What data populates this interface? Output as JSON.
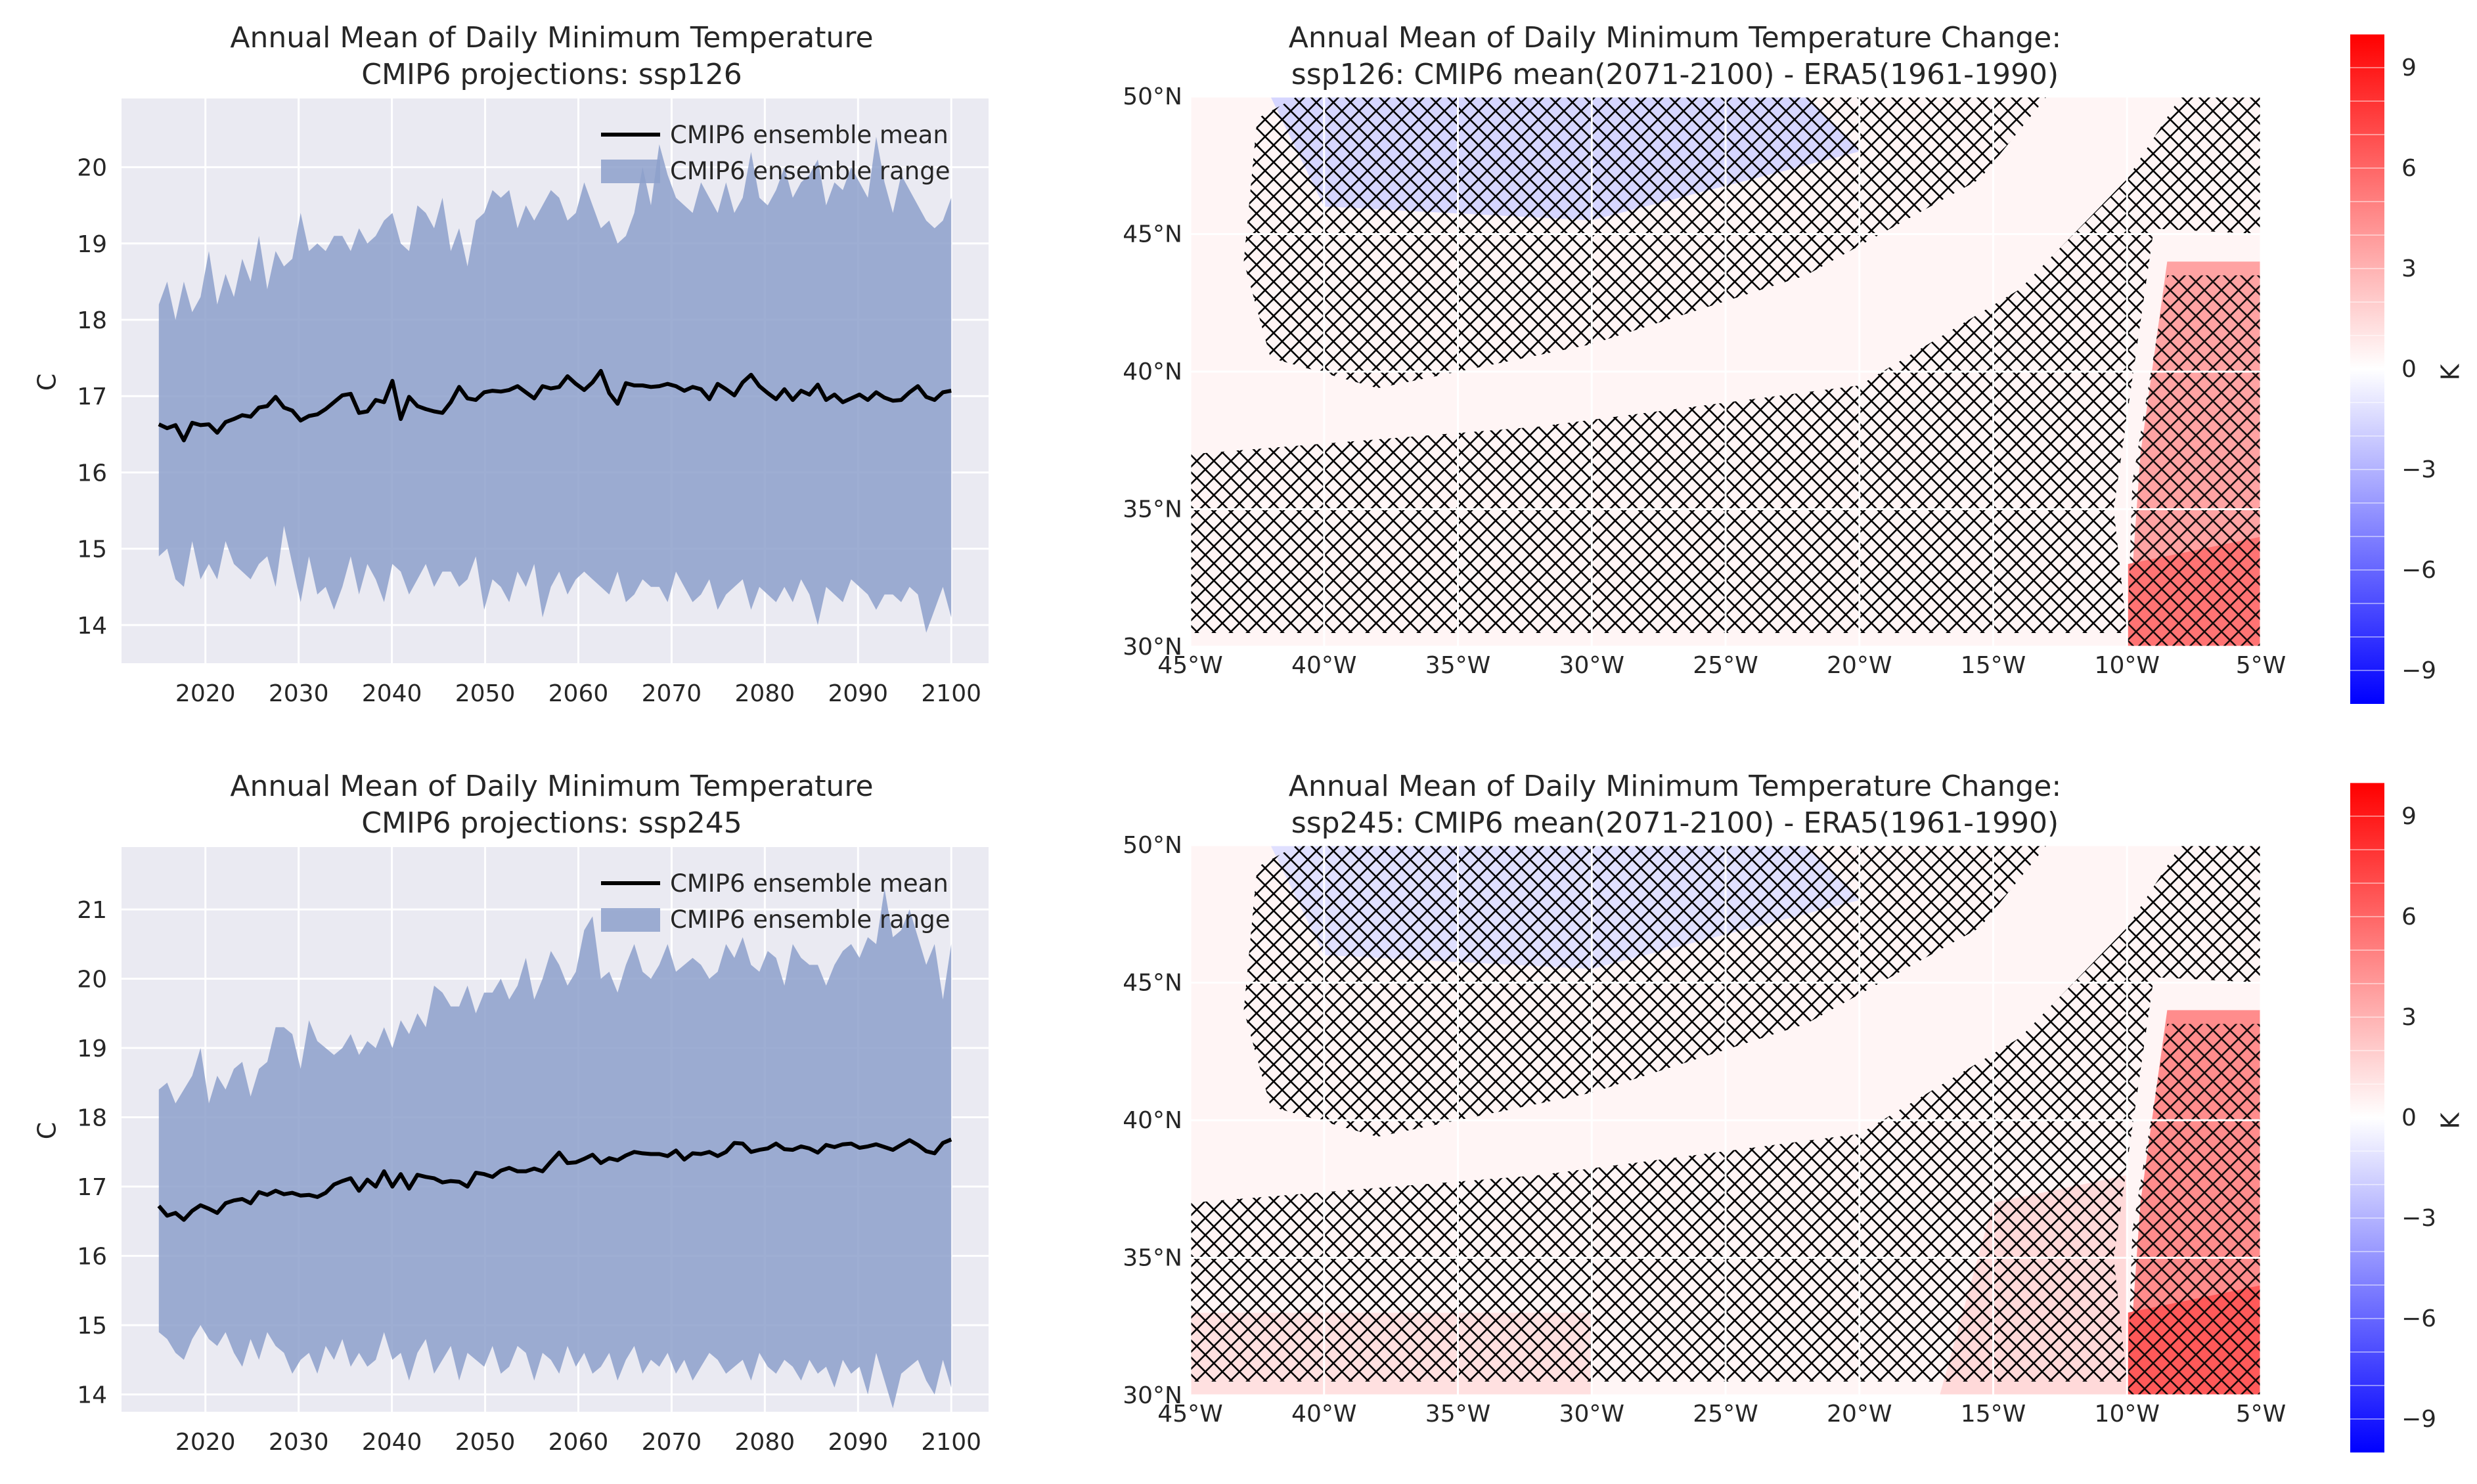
{
  "colors": {
    "axes_bg": "#eaeaf2",
    "grid": "#ffffff",
    "range_fill": "#8da0cb",
    "mean_line": "#000000",
    "hatch": "#000000",
    "cmap_neg": "#0000ff",
    "cmap_zero": "#ffffff",
    "cmap_pos": "#ff0000"
  },
  "chart_data": [
    {
      "type": "area",
      "title_line1": "Annual Mean of Daily Minimum Temperature",
      "title_line2": "CMIP6 projections: ssp126",
      "ylabel": "C",
      "xlim": [
        2011,
        2104
      ],
      "ylim": [
        13.5,
        20.9
      ],
      "x_ticks": [
        2020,
        2030,
        2040,
        2050,
        2060,
        2070,
        2080,
        2090,
        2100
      ],
      "y_ticks": [
        14,
        15,
        16,
        17,
        18,
        19,
        20
      ],
      "legend": {
        "position": "top-right",
        "mean_label": "CMIP6 ensemble mean",
        "range_label": "CMIP6 ensemble range"
      },
      "x_start": 2015,
      "x_end": 2100,
      "mean": [
        16.63,
        16.58,
        16.62,
        16.42,
        16.65,
        16.62,
        16.63,
        16.52,
        16.66,
        16.7,
        16.75,
        16.73,
        16.85,
        16.87,
        16.99,
        16.85,
        16.81,
        16.68,
        16.74,
        16.76,
        16.83,
        16.92,
        17.01,
        17.03,
        16.78,
        16.8,
        16.95,
        16.92,
        17.2,
        16.7,
        16.99,
        16.87,
        16.83,
        16.8,
        16.78,
        16.92,
        17.12,
        16.97,
        16.95,
        17.05,
        17.07,
        17.06,
        17.08,
        17.13,
        17.05,
        16.97,
        17.13,
        17.1,
        17.12,
        17.26,
        17.16,
        17.08,
        17.18,
        17.33,
        17.04,
        16.9,
        17.17,
        17.14,
        17.14,
        17.12,
        17.13,
        17.16,
        17.13,
        17.07,
        17.12,
        17.09,
        16.96,
        17.16,
        17.09,
        17.01,
        17.18,
        17.28,
        17.13,
        17.04,
        16.96,
        17.09,
        16.95,
        17.07,
        17.02,
        17.15,
        16.95,
        17.02,
        16.92,
        16.97,
        17.02,
        16.95,
        17.05,
        16.98,
        16.94,
        16.95,
        17.05,
        17.13,
        16.99,
        16.95,
        17.05,
        17.07
      ],
      "upper": [
        18.2,
        18.5,
        18.0,
        18.5,
        18.1,
        18.3,
        18.9,
        18.2,
        18.6,
        18.3,
        18.8,
        18.5,
        19.1,
        18.4,
        18.9,
        18.7,
        18.8,
        19.4,
        18.9,
        19.0,
        18.9,
        19.1,
        19.1,
        18.9,
        19.2,
        19.0,
        19.1,
        19.3,
        19.4,
        19.0,
        18.9,
        19.5,
        19.4,
        19.2,
        19.6,
        18.9,
        19.2,
        18.7,
        19.3,
        19.4,
        19.7,
        19.6,
        19.7,
        19.2,
        19.5,
        19.3,
        19.5,
        19.7,
        19.6,
        19.3,
        19.4,
        19.8,
        19.5,
        19.2,
        19.3,
        19.0,
        19.1,
        19.4,
        20.0,
        19.5,
        20.3,
        19.9,
        19.6,
        19.5,
        19.4,
        19.8,
        19.6,
        19.4,
        19.8,
        19.4,
        19.6,
        20.2,
        19.6,
        19.5,
        19.7,
        20.0,
        19.6,
        19.8,
        19.9,
        20.1,
        19.5,
        19.8,
        19.7,
        20.0,
        19.8,
        19.6,
        20.4,
        19.8,
        19.4,
        19.9,
        19.7,
        19.5,
        19.3,
        19.2,
        19.3,
        19.6
      ],
      "lower": [
        14.9,
        15.0,
        14.6,
        14.5,
        15.1,
        14.6,
        14.8,
        14.6,
        15.1,
        14.8,
        14.7,
        14.6,
        14.8,
        14.9,
        14.5,
        15.3,
        14.8,
        14.3,
        14.9,
        14.4,
        14.5,
        14.2,
        14.5,
        14.9,
        14.4,
        14.8,
        14.6,
        14.3,
        14.8,
        14.7,
        14.4,
        14.6,
        14.8,
        14.5,
        14.7,
        14.7,
        14.5,
        14.6,
        14.9,
        14.2,
        14.6,
        14.5,
        14.3,
        14.7,
        14.5,
        14.8,
        14.1,
        14.5,
        14.7,
        14.4,
        14.6,
        14.7,
        14.6,
        14.5,
        14.4,
        14.7,
        14.3,
        14.4,
        14.6,
        14.5,
        14.5,
        14.3,
        14.7,
        14.5,
        14.3,
        14.4,
        14.6,
        14.2,
        14.4,
        14.5,
        14.6,
        14.2,
        14.5,
        14.4,
        14.3,
        14.5,
        14.3,
        14.6,
        14.4,
        14.0,
        14.5,
        14.4,
        14.3,
        14.6,
        14.5,
        14.4,
        14.2,
        14.4,
        14.4,
        14.3,
        14.5,
        14.4,
        13.9,
        14.2,
        14.5,
        14.1
      ]
    },
    {
      "type": "heatmap",
      "title_line1": "Annual Mean of Daily Minimum Temperature Change:",
      "title_line2": "ssp126: CMIP6 mean(2071-2100) - ERA5(1961-1990)",
      "lon_range": [
        -45,
        -5
      ],
      "lat_range": [
        30,
        50
      ],
      "x_ticks": [
        "45°W",
        "40°W",
        "35°W",
        "30°W",
        "25°W",
        "20°W",
        "15°W",
        "10°W",
        "5°W"
      ],
      "y_ticks": [
        "50°N",
        "45°N",
        "40°N",
        "35°N",
        "30°N"
      ],
      "colorbar": {
        "label": "K",
        "ticks": [
          "9",
          "6",
          "3",
          "0",
          "−3",
          "−6",
          "−9"
        ],
        "range": [
          -10,
          10
        ]
      }
    },
    {
      "type": "area",
      "title_line1": "Annual Mean of Daily Minimum Temperature",
      "title_line2": "CMIP6 projections: ssp245",
      "ylabel": "C",
      "xlim": [
        2011,
        2104
      ],
      "ylim": [
        13.75,
        21.9
      ],
      "x_ticks": [
        2020,
        2030,
        2040,
        2050,
        2060,
        2070,
        2080,
        2090,
        2100
      ],
      "y_ticks": [
        14,
        15,
        16,
        17,
        18,
        19,
        20,
        21
      ],
      "legend": {
        "position": "top-right",
        "mean_label": "CMIP6 ensemble mean",
        "range_label": "CMIP6 ensemble range"
      },
      "x_start": 2015,
      "x_end": 2100,
      "mean": [
        16.72,
        16.58,
        16.62,
        16.52,
        16.65,
        16.73,
        16.68,
        16.62,
        16.76,
        16.8,
        16.82,
        16.76,
        16.92,
        16.88,
        16.94,
        16.89,
        16.91,
        16.87,
        16.88,
        16.85,
        16.91,
        17.03,
        17.08,
        17.12,
        16.94,
        17.1,
        17.0,
        17.22,
        17.0,
        17.18,
        16.97,
        17.17,
        17.14,
        17.12,
        17.06,
        17.08,
        17.07,
        17.0,
        17.2,
        17.18,
        17.14,
        17.23,
        17.27,
        17.22,
        17.22,
        17.26,
        17.22,
        17.36,
        17.49,
        17.34,
        17.35,
        17.4,
        17.46,
        17.34,
        17.41,
        17.38,
        17.45,
        17.5,
        17.48,
        17.47,
        17.47,
        17.44,
        17.52,
        17.39,
        17.48,
        17.47,
        17.5,
        17.44,
        17.5,
        17.63,
        17.62,
        17.5,
        17.53,
        17.55,
        17.62,
        17.54,
        17.53,
        17.58,
        17.55,
        17.49,
        17.6,
        17.57,
        17.61,
        17.62,
        17.56,
        17.58,
        17.61,
        17.57,
        17.53,
        17.6,
        17.67,
        17.6,
        17.51,
        17.48,
        17.63,
        17.68
      ],
      "upper": [
        18.4,
        18.5,
        18.2,
        18.4,
        18.6,
        19.0,
        18.2,
        18.6,
        18.4,
        18.7,
        18.8,
        18.3,
        18.7,
        18.8,
        19.3,
        19.3,
        19.2,
        18.7,
        19.4,
        19.1,
        19.0,
        18.9,
        19.0,
        19.2,
        18.9,
        19.1,
        19.0,
        19.3,
        19.0,
        19.4,
        19.2,
        19.5,
        19.3,
        19.9,
        19.8,
        19.6,
        19.6,
        19.9,
        19.5,
        19.8,
        19.8,
        20.0,
        19.7,
        19.9,
        20.3,
        19.7,
        20.0,
        20.4,
        20.2,
        19.9,
        20.1,
        20.7,
        20.9,
        20.0,
        20.1,
        19.8,
        20.2,
        20.5,
        20.1,
        20.0,
        20.2,
        20.5,
        20.1,
        20.2,
        20.3,
        20.2,
        20.0,
        20.1,
        20.5,
        20.3,
        20.6,
        20.2,
        20.1,
        20.4,
        20.3,
        19.9,
        20.5,
        20.3,
        20.2,
        20.2,
        19.9,
        20.2,
        20.4,
        20.5,
        20.3,
        20.6,
        20.5,
        21.3,
        20.6,
        20.7,
        21.0,
        20.6,
        20.2,
        20.5,
        19.7,
        20.5
      ],
      "lower": [
        14.9,
        14.8,
        14.6,
        14.5,
        14.8,
        15.0,
        14.8,
        14.7,
        14.9,
        14.6,
        14.4,
        14.8,
        14.5,
        14.9,
        14.7,
        14.6,
        14.3,
        14.5,
        14.6,
        14.3,
        14.7,
        14.5,
        14.8,
        14.4,
        14.6,
        14.4,
        14.5,
        14.9,
        14.5,
        14.6,
        14.2,
        14.6,
        14.8,
        14.3,
        14.5,
        14.7,
        14.2,
        14.6,
        14.5,
        14.4,
        14.7,
        14.3,
        14.4,
        14.7,
        14.6,
        14.2,
        14.6,
        14.5,
        14.3,
        14.7,
        14.4,
        14.6,
        14.3,
        14.4,
        14.6,
        14.2,
        14.5,
        14.7,
        14.3,
        14.5,
        14.4,
        14.6,
        14.3,
        14.5,
        14.2,
        14.4,
        14.6,
        14.5,
        14.3,
        14.4,
        14.5,
        14.2,
        14.6,
        14.4,
        14.3,
        14.5,
        14.4,
        14.2,
        14.5,
        14.3,
        14.4,
        14.1,
        14.5,
        14.3,
        14.4,
        14.0,
        14.6,
        14.2,
        13.8,
        14.3,
        14.4,
        14.5,
        14.2,
        14.0,
        14.5,
        14.1
      ]
    },
    {
      "type": "heatmap",
      "title_line1": "Annual Mean of Daily Minimum Temperature Change:",
      "title_line2": "ssp245: CMIP6 mean(2071-2100) - ERA5(1961-1990)",
      "lon_range": [
        -45,
        -5
      ],
      "lat_range": [
        30,
        50
      ],
      "x_ticks": [
        "45°W",
        "40°W",
        "35°W",
        "30°W",
        "25°W",
        "20°W",
        "15°W",
        "10°W",
        "5°W"
      ],
      "y_ticks": [
        "50°N",
        "45°N",
        "40°N",
        "35°N",
        "30°N"
      ],
      "colorbar": {
        "label": "K",
        "ticks": [
          "9",
          "6",
          "3",
          "0",
          "−3",
          "−6",
          "−9"
        ],
        "range": [
          -10,
          10
        ]
      }
    }
  ]
}
